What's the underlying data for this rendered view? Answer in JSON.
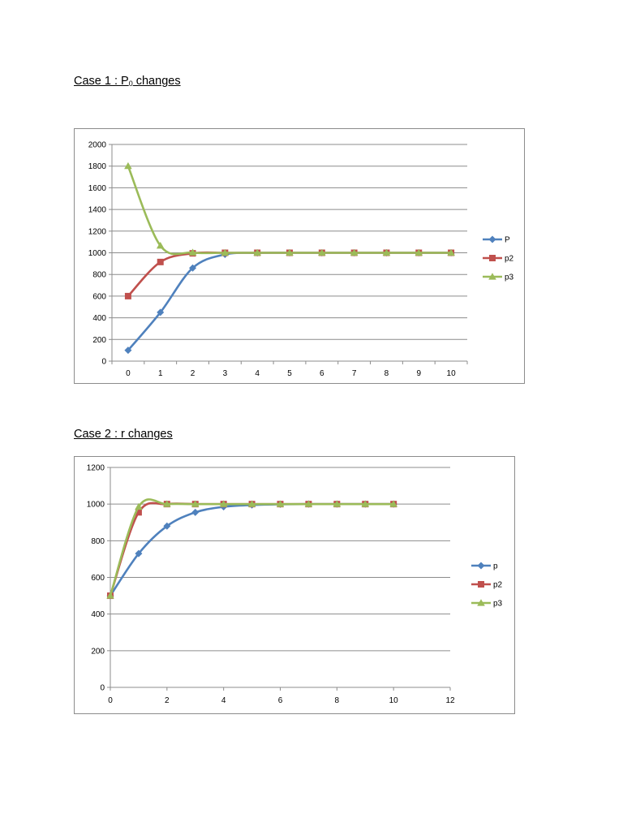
{
  "headings": {
    "case1_prefix": "Case 1 : P",
    "case1_sub": "0",
    "case1_suffix": " changes",
    "case2": "Case 2 : r changes"
  },
  "chart_data": [
    {
      "type": "line",
      "title": "",
      "xlabel": "",
      "ylabel": "",
      "x_axis_kind": "category",
      "categories": [
        "0",
        "1",
        "2",
        "3",
        "4",
        "5",
        "6",
        "7",
        "8",
        "9",
        "10"
      ],
      "x": [
        0,
        1,
        2,
        3,
        4,
        5,
        6,
        7,
        8,
        9,
        10
      ],
      "ylim": [
        0,
        2000
      ],
      "yticks": [
        0,
        200,
        400,
        600,
        800,
        1000,
        1200,
        1400,
        1600,
        1800,
        2000
      ],
      "grid": true,
      "smooth": true,
      "legend_position": "right",
      "series": [
        {
          "name": "P",
          "color": "#4f81bd",
          "marker": "diamond",
          "values": [
            100,
            450,
            860,
            985,
            999,
            1000,
            1000,
            1000,
            1000,
            1000,
            1000
          ]
        },
        {
          "name": "p2",
          "color": "#c0504d",
          "marker": "square",
          "values": [
            600,
            915,
            995,
            1000,
            1000,
            1000,
            1000,
            1000,
            1000,
            1000,
            1000
          ]
        },
        {
          "name": "p3",
          "color": "#9bbb59",
          "marker": "triangle",
          "values": [
            1800,
            1065,
            1002,
            1000,
            1000,
            1000,
            1000,
            1000,
            1000,
            1000,
            1000
          ]
        }
      ]
    },
    {
      "type": "scatter",
      "title": "",
      "xlabel": "",
      "ylabel": "",
      "x_axis_kind": "value",
      "xlim": [
        0,
        12
      ],
      "xticks": [
        0,
        2,
        4,
        6,
        8,
        10,
        12
      ],
      "ylim": [
        0,
        1200
      ],
      "yticks": [
        0,
        200,
        400,
        600,
        800,
        1000,
        1200
      ],
      "grid": true,
      "smooth": true,
      "legend_position": "right",
      "x": [
        0,
        1,
        2,
        3,
        4,
        5,
        6,
        7,
        8,
        9,
        10
      ],
      "series": [
        {
          "name": "p",
          "color": "#4f81bd",
          "marker": "diamond",
          "values": [
            500,
            730,
            880,
            955,
            985,
            995,
            999,
            1000,
            1000,
            1000,
            1000
          ]
        },
        {
          "name": "p2",
          "color": "#c0504d",
          "marker": "square",
          "values": [
            500,
            955,
            1000,
            1000,
            1000,
            1000,
            1000,
            1000,
            1000,
            1000,
            1000
          ]
        },
        {
          "name": "p3",
          "color": "#9bbb59",
          "marker": "triangle",
          "values": [
            500,
            985,
            1000,
            1000,
            1000,
            1000,
            1000,
            1000,
            1000,
            1000,
            1000
          ]
        }
      ]
    }
  ]
}
